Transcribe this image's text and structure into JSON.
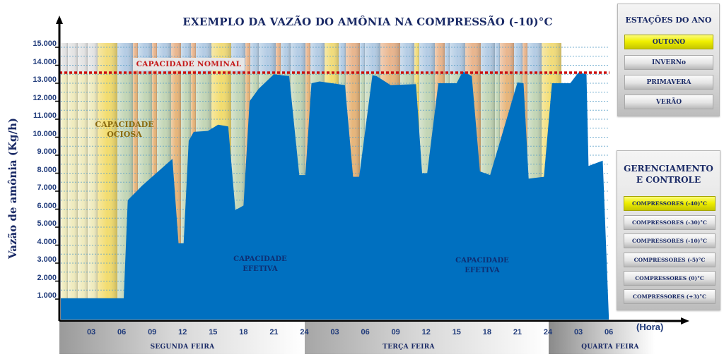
{
  "chart": {
    "title": "EXEMPLO DA VAZÃO DO AMÔNIA NA COMPRESSÃO (-10)°C",
    "ylabel": "Vazão de amônia (Kg/h)",
    "xlabel": "(Hora)",
    "nominal_label": "CAPACIDADE NOMINAL",
    "ociosa_line1": "CAPACIDADE",
    "ociosa_line2": "OCIOSA",
    "efetiva1_line1": "CAPACIDADE",
    "efetiva1_line2": "EFETIVA",
    "efetiva2_line1": "CAPACIDADE",
    "efetiva2_line2": "EFETIVA",
    "y_ticks": [
      "15.000",
      "14.000",
      "13.000",
      "12.000",
      "11.000",
      "10.000",
      "9.000",
      "8.000",
      "7.000",
      "6.000",
      "5.000",
      "4.000",
      "3.000",
      "2.000",
      "1.000"
    ],
    "x_ticks": [
      "03",
      "06",
      "09",
      "12",
      "15",
      "18",
      "21",
      "24",
      "03",
      "06",
      "09",
      "12",
      "15",
      "18",
      "21",
      "24",
      "03",
      "06"
    ],
    "days": [
      "SEGUNDA FEIRA",
      "TERÇA FEIRA",
      "QUARTA FEIRA"
    ]
  },
  "seasons_panel": {
    "title": "ESTAÇÕES DO ANO",
    "buttons": [
      "OUTONO",
      "INVERNo",
      "PRIMAVERA",
      "VERÃO"
    ],
    "active": "OUTONO"
  },
  "control_panel": {
    "title_line1": "GERENCIAMENTO",
    "title_line2": "E CONTROLE",
    "buttons": [
      "COMPRESSORES (-40)°C",
      "COMPRESSORES (-30)°C",
      "COMPRESSORES (-10)°C",
      "COMPRESSORES (-5)°C",
      "COMPRESSORES (0)°C",
      "COMPRESSORES (+3)°C"
    ],
    "active": "COMPRESSORES (-40)°C"
  },
  "colors": {
    "area": "#0070c0",
    "nominal_line": "#cc1010",
    "title": "#1a2a66",
    "active_button": "#f0f000"
  },
  "chart_data": {
    "type": "area",
    "title": "EXEMPLO DA VAZÃO DO AMÔNIA NA COMPRESSÃO (-10)°C",
    "xlabel": "(Hora)",
    "ylabel": "Vazão de amônia (Kg/h)",
    "ylim": [
      0,
      15500
    ],
    "xlim": [
      0,
      54
    ],
    "grid": true,
    "x_ticks_hours": [
      3,
      6,
      9,
      12,
      15,
      18,
      21,
      24,
      27,
      30,
      33,
      36,
      39,
      42,
      45,
      48,
      51,
      54
    ],
    "x_tick_labels": [
      "03",
      "06",
      "09",
      "12",
      "15",
      "18",
      "21",
      "24",
      "03",
      "06",
      "09",
      "12",
      "15",
      "18",
      "21",
      "24",
      "03",
      "06"
    ],
    "day_groups": [
      {
        "label": "SEGUNDA FEIRA",
        "from_hour": 0,
        "to_hour": 24
      },
      {
        "label": "TERÇA FEIRA",
        "from_hour": 24,
        "to_hour": 48
      },
      {
        "label": "QUARTA FEIRA",
        "from_hour": 48,
        "to_hour": 54
      }
    ],
    "reference_lines": [
      {
        "label": "CAPACIDADE NOMINAL",
        "y": 13700,
        "style": "dotted",
        "color": "#cc1010"
      }
    ],
    "annotations": [
      "CAPACIDADE OCIOSA",
      "CAPACIDADE EFETIVA",
      "CAPACIDADE EFETIVA"
    ],
    "series": [
      {
        "name": "Vazão de amônia (Kg/h)",
        "x": [
          0,
          6.2,
          6.6,
          8,
          11,
          11.6,
          12.1,
          12.6,
          13.1,
          14.5,
          15.5,
          16.5,
          17.2,
          18,
          18.6,
          19.5,
          21,
          22.5,
          23.5,
          24.1,
          24.7,
          25.5,
          28,
          28.8,
          29.4,
          30.7,
          31.1,
          32.5,
          35,
          35.6,
          36.1,
          37.2,
          39,
          39.6,
          40.5,
          41.3,
          42.3,
          45,
          45.6,
          46.1,
          47.6,
          48.4,
          50.2,
          51,
          51.8,
          52,
          53.4,
          54
        ],
        "y": [
          1050,
          1050,
          6500,
          7300,
          8800,
          4100,
          4100,
          9800,
          10300,
          10350,
          10700,
          10600,
          5950,
          6200,
          12000,
          12700,
          13500,
          13400,
          7900,
          7900,
          13000,
          13100,
          12900,
          7800,
          7800,
          13450,
          13400,
          12900,
          12950,
          8000,
          8000,
          13000,
          13000,
          13650,
          13400,
          8100,
          7900,
          13050,
          13000,
          7700,
          7800,
          13000,
          13000,
          13600,
          13500,
          8400,
          8700,
          0
        ]
      }
    ]
  }
}
